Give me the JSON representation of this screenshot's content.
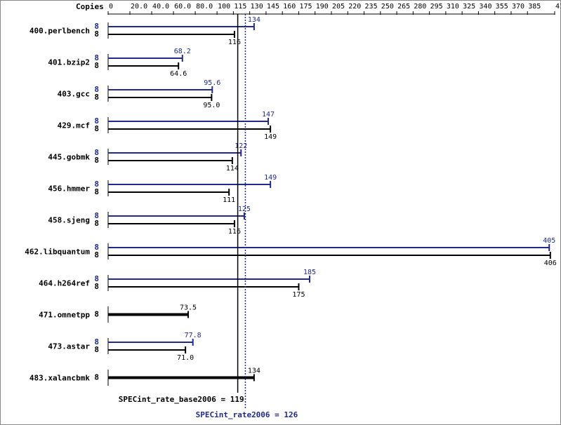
{
  "chart_data": {
    "type": "spec-bars",
    "axis_label": "Copies",
    "categories": [
      "400.perlbench",
      "401.bzip2",
      "403.gcc",
      "429.mcf",
      "445.gobmk",
      "456.hmmer",
      "458.sjeng",
      "462.libquantum",
      "464.h264ref",
      "471.omnetpp",
      "473.astar",
      "483.xalancbmk"
    ],
    "series": [
      {
        "color": "#1f2a8c",
        "copies": [
          8,
          8,
          8,
          8,
          8,
          8,
          8,
          8,
          8,
          null,
          8,
          null
        ],
        "values": [
          134,
          68.2,
          95.6,
          147,
          122,
          149,
          125,
          405,
          185,
          null,
          77.8,
          null
        ],
        "value_labels": [
          "134",
          "68.2",
          "95.6",
          "147",
          "122",
          "149",
          "125",
          "405",
          "185",
          null,
          "77.8",
          null
        ]
      },
      {
        "color": "#000000",
        "copies": [
          8,
          8,
          8,
          8,
          8,
          8,
          8,
          8,
          8,
          8,
          8,
          8
        ],
        "values": [
          116,
          64.6,
          95,
          149,
          114,
          111,
          116,
          406,
          175,
          73.5,
          71,
          134
        ],
        "value_labels": [
          "116",
          "64.6",
          "95.0",
          "149",
          "114",
          "111",
          "116",
          "406",
          "175",
          "73.5",
          "71.0",
          "134"
        ]
      }
    ],
    "xlim": [
      0,
      410
    ],
    "xticks": [
      0,
      {
        "value": 20,
        "label": "20.0"
      },
      {
        "value": 40,
        "label": "40.0"
      },
      {
        "value": 60,
        "label": "60.0"
      },
      {
        "value": 80,
        "label": "80.0"
      },
      100,
      115,
      130,
      145,
      160,
      175,
      190,
      205,
      220,
      235,
      250,
      265,
      280,
      295,
      310,
      325,
      340,
      355,
      370,
      385,
      410
    ],
    "summary": [
      {
        "label": "SPECint_rate_base2006 = 119",
        "value": 119,
        "color": "#000000"
      },
      {
        "label": "SPECint_rate2006 = 126",
        "value": 126,
        "color": "#1f2a8c"
      }
    ]
  }
}
